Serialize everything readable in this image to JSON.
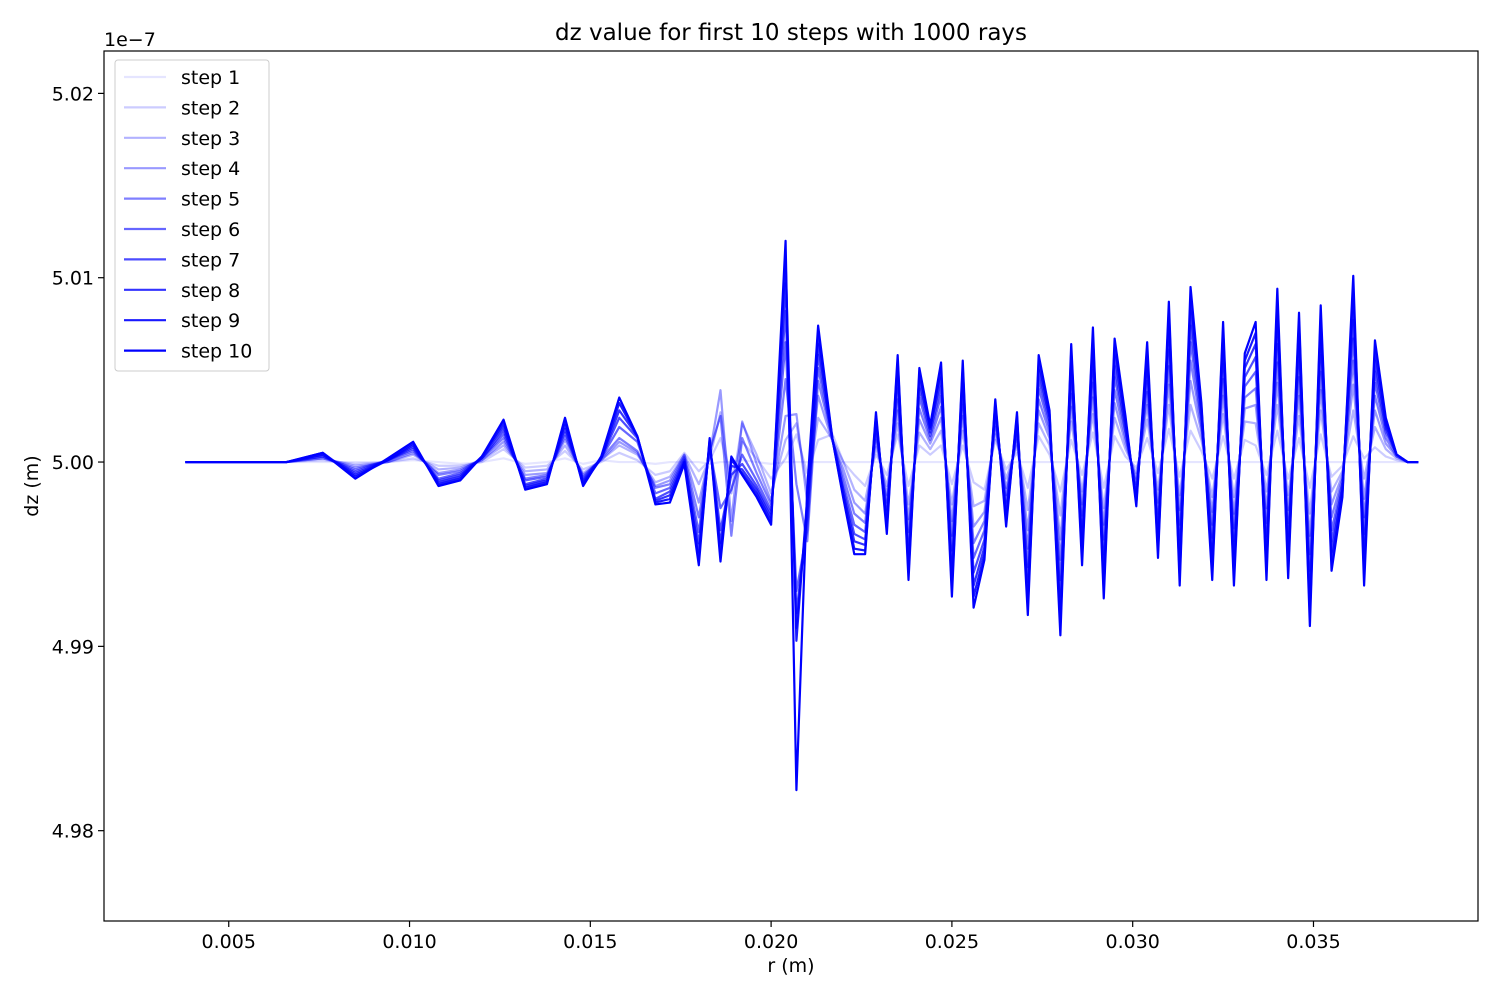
{
  "chart_data": {
    "type": "line",
    "title": "dz value for first 10 steps with 1000 rays",
    "xlabel": "r (m)",
    "ylabel": "dz (m)",
    "y_offset_label": "1e−7",
    "xlim": [
      0.00155,
      0.03955
    ],
    "ylim": [
      4.9751,
      5.0223
    ],
    "x_ticks": [
      0.005,
      0.01,
      0.015,
      0.02,
      0.025,
      0.03,
      0.035
    ],
    "x_tick_labels": [
      "0.005",
      "0.010",
      "0.015",
      "0.020",
      "0.025",
      "0.030",
      "0.035"
    ],
    "y_ticks": [
      4.98,
      4.99,
      5.0,
      5.01,
      5.02
    ],
    "y_tick_labels": [
      "4.98",
      "4.99",
      "5.00",
      "5.01",
      "5.02"
    ],
    "grid": false,
    "legend_position": "top-left",
    "base_color": "#0000ff",
    "series_alphas": [
      0.1,
      0.2,
      0.3,
      0.4,
      0.5,
      0.6,
      0.7,
      0.8,
      0.9,
      1.0
    ],
    "x": [
      0.0038,
      0.0047,
      0.0056,
      0.0066,
      0.0076,
      0.0085,
      0.0094,
      0.0101,
      0.0108,
      0.0114,
      0.012,
      0.0126,
      0.0132,
      0.0138,
      0.0143,
      0.0148,
      0.0153,
      0.0158,
      0.0163,
      0.0168,
      0.0172,
      0.0176,
      0.018,
      0.0183,
      0.0186,
      0.0189,
      0.0192,
      0.0196,
      0.02,
      0.0204,
      0.0207,
      0.021,
      0.0213,
      0.0217,
      0.022,
      0.0223,
      0.0226,
      0.0229,
      0.0232,
      0.0235,
      0.0238,
      0.0241,
      0.0244,
      0.0247,
      0.025,
      0.0253,
      0.0256,
      0.0259,
      0.0262,
      0.0265,
      0.0268,
      0.0271,
      0.0274,
      0.0277,
      0.028,
      0.0283,
      0.0286,
      0.0289,
      0.0292,
      0.0295,
      0.0298,
      0.0301,
      0.0304,
      0.0307,
      0.031,
      0.0313,
      0.0316,
      0.0319,
      0.0322,
      0.0325,
      0.0328,
      0.0331,
      0.0334,
      0.0337,
      0.034,
      0.0343,
      0.0346,
      0.0349,
      0.0352,
      0.0355,
      0.0358,
      0.0361,
      0.0364,
      0.0367,
      0.037,
      0.0373,
      0.0376,
      0.0379
    ],
    "series": [
      {
        "name": "step 1",
        "values": [
          5.0,
          5.0,
          5.0,
          5.0,
          5.0,
          5.0,
          5.0,
          5.0001,
          5.0,
          4.9999,
          5.0,
          5.0002,
          4.9999,
          5.0,
          5.0002,
          4.9999,
          5.0001,
          5.0,
          5.0,
          4.9999,
          5.0,
          5.0,
          5.0,
          4.9999,
          5.0,
          5.0,
          5.0001,
          5.0,
          4.9999,
          5.0,
          5.0,
          5.0,
          5.0,
          5.0,
          5.0,
          5.0,
          5.0,
          5.0,
          5.0,
          5.0,
          5.0,
          5.0,
          5.0,
          5.0,
          5.0,
          5.0,
          5.0,
          5.0,
          5.0,
          5.0,
          5.0,
          5.0,
          5.0,
          5.0,
          5.0,
          5.0,
          5.0,
          5.0,
          5.0,
          5.0,
          5.0,
          5.0,
          5.0,
          5.0,
          5.0,
          5.0,
          5.0,
          5.0,
          5.0,
          5.0,
          5.0,
          5.0,
          5.0,
          5.0,
          5.0,
          5.0,
          5.0,
          5.0,
          5.0,
          5.0,
          5.0,
          5.0,
          5.0,
          5.0,
          5.0,
          5.0,
          5.0,
          5.0
        ]
      },
      {
        "name": "step 2",
        "values": [
          5.0,
          5.0,
          5.0,
          5.0,
          5.0001,
          4.9999,
          5.0,
          5.0002,
          4.9998,
          4.9998,
          5.0,
          5.0007,
          4.9997,
          4.9998,
          5.0006,
          4.9996,
          5.0,
          5.0005,
          5.0001,
          4.9993,
          4.9995,
          5.0005,
          4.9995,
          5.0001,
          5.0013,
          4.9992,
          5.0011,
          5.0002,
          4.9991,
          5.0002,
          5.0015,
          4.9994,
          5.0012,
          5.0015,
          5.0,
          4.9993,
          4.9987,
          5.0004,
          4.9993,
          5.0015,
          4.9987,
          5.0009,
          5.0004,
          5.0009,
          4.9988,
          5.0009,
          4.9989,
          4.9985,
          5.0012,
          4.9996,
          5.0005,
          4.9986,
          5.0014,
          5.0004,
          4.9984,
          5.0012,
          4.9993,
          5.0016,
          4.9986,
          5.0014,
          5.0003,
          4.9997,
          5.0013,
          4.9994,
          5.0018,
          4.9992,
          5.0017,
          5.0006,
          4.9991,
          5.0014,
          4.9991,
          5.0012,
          5.0009,
          4.9993,
          5.0017,
          4.9991,
          5.0013,
          4.9986,
          5.0015,
          4.9992,
          4.9998,
          5.0014,
          5.0002,
          5.0008,
          5.0003,
          5.0001,
          5.0,
          5.0
        ]
      },
      {
        "name": "step 3",
        "values": [
          5.0,
          5.0,
          5.0,
          5.0,
          5.0002,
          4.9998,
          5.0,
          5.0004,
          4.9996,
          4.9997,
          5.0001,
          5.0009,
          4.9995,
          4.9996,
          5.0009,
          4.9994,
          5.0001,
          5.0009,
          5.0004,
          4.9989,
          4.9992,
          5.0004,
          4.9988,
          5.0002,
          5.0027,
          4.9983,
          5.0021,
          5.0004,
          4.9983,
          5.0012,
          5.0021,
          4.9986,
          5.0024,
          5.0012,
          5.0,
          4.9985,
          4.9979,
          5.0008,
          4.9987,
          5.0021,
          4.9977,
          5.0016,
          5.0007,
          5.0017,
          4.9977,
          5.0017,
          4.9976,
          4.9979,
          5.0015,
          4.9991,
          5.0009,
          4.9974,
          5.0021,
          5.0009,
          4.9971,
          5.0022,
          4.9984,
          5.0026,
          4.9975,
          5.0024,
          5.0007,
          4.9994,
          5.0023,
          4.9985,
          5.0031,
          4.9982,
          5.0031,
          5.0012,
          4.9981,
          5.0026,
          4.9981,
          5.0022,
          5.0021,
          4.9984,
          5.0031,
          4.9982,
          5.0025,
          4.9972,
          5.0028,
          4.9984,
          4.9995,
          5.0028,
          4.9991,
          5.0019,
          5.0007,
          5.0002,
          5.0,
          5.0
        ]
      },
      {
        "name": "step 4",
        "values": [
          5.0,
          5.0,
          5.0,
          5.0,
          5.0002,
          4.9997,
          5.0,
          5.0005,
          4.9994,
          4.9996,
          5.0001,
          5.0011,
          4.9993,
          4.9994,
          5.0012,
          4.9993,
          5.0001,
          5.0011,
          5.0005,
          4.9987,
          4.999,
          5.0004,
          4.9978,
          5.0004,
          5.0039,
          4.9968,
          5.0022,
          4.9999,
          4.9979,
          5.0025,
          5.0026,
          4.9978,
          5.0036,
          5.0011,
          4.9996,
          4.9978,
          4.9972,
          5.0012,
          4.9982,
          5.0028,
          4.9969,
          5.0023,
          5.001,
          5.0024,
          4.9968,
          5.0025,
          4.9965,
          4.9973,
          5.0019,
          4.9986,
          5.0012,
          4.9963,
          5.0028,
          5.0013,
          4.9958,
          5.003,
          4.9977,
          5.0035,
          4.9966,
          5.0032,
          5.001,
          4.9991,
          5.0031,
          4.9978,
          5.0042,
          4.9974,
          5.0044,
          5.0016,
          4.9973,
          5.0036,
          4.9972,
          5.0029,
          5.0031,
          4.9975,
          5.0043,
          4.9974,
          5.0036,
          4.996,
          5.0039,
          4.9977,
          4.9993,
          5.0042,
          4.998,
          5.0028,
          5.001,
          5.0003,
          5.0,
          5.0
        ]
      },
      {
        "name": "step 5",
        "values": [
          5.0,
          5.0,
          5.0,
          5.0,
          5.0003,
          4.9996,
          5.0001,
          5.0006,
          4.9993,
          4.9995,
          5.0002,
          5.0013,
          4.9991,
          4.9993,
          5.0014,
          4.9992,
          5.0002,
          5.0013,
          5.0006,
          4.9986,
          4.9988,
          5.0003,
          4.997,
          5.0006,
          5.0025,
          4.996,
          5.0013,
          4.9994,
          4.9977,
          5.0045,
          4.9988,
          4.9957,
          5.0044,
          5.0012,
          4.9992,
          4.9972,
          4.9967,
          5.0015,
          4.9978,
          5.0034,
          4.9962,
          5.0029,
          5.0012,
          5.003,
          4.996,
          5.0031,
          4.9956,
          4.9968,
          5.0022,
          4.9982,
          5.0015,
          4.9953,
          5.0034,
          5.0016,
          4.9947,
          5.0037,
          4.9971,
          5.0043,
          4.9958,
          5.0039,
          5.0013,
          4.9988,
          5.0038,
          4.9972,
          5.0052,
          4.9966,
          5.0055,
          5.0019,
          4.9966,
          5.0045,
          4.9964,
          5.0035,
          5.004,
          4.9967,
          5.0054,
          4.9967,
          5.0046,
          4.995,
          5.0049,
          4.997,
          4.9991,
          5.0055,
          4.997,
          5.0036,
          5.0013,
          5.0003,
          5.0,
          5.0
        ]
      },
      {
        "name": "step 6",
        "values": [
          5.0,
          5.0,
          5.0,
          5.0,
          5.0003,
          4.9995,
          5.0001,
          5.0007,
          4.9991,
          4.9994,
          5.0002,
          5.0015,
          4.999,
          4.9992,
          5.0016,
          4.9991,
          5.0002,
          5.0019,
          5.0011,
          4.9983,
          4.9986,
          5.0002,
          4.9962,
          5.0008,
          4.9975,
          4.9985,
          5.0004,
          4.999,
          4.9974,
          5.0065,
          4.993,
          4.9963,
          5.0051,
          5.0012,
          4.9988,
          4.9966,
          4.9962,
          5.0018,
          4.9974,
          5.004,
          4.9955,
          5.0035,
          5.0014,
          5.0036,
          4.9952,
          5.0037,
          4.9948,
          4.9963,
          5.0025,
          4.9978,
          5.0018,
          4.9943,
          5.004,
          5.0019,
          4.9936,
          5.0044,
          4.9965,
          5.005,
          4.995,
          5.0046,
          5.0016,
          4.9985,
          5.0044,
          4.9966,
          5.0061,
          4.9958,
          5.0065,
          5.0022,
          4.9959,
          5.0053,
          4.9957,
          5.0041,
          5.0049,
          4.996,
          5.0064,
          4.996,
          5.0055,
          4.9941,
          5.0058,
          4.9963,
          4.9989,
          5.0067,
          4.9961,
          5.0043,
          5.0016,
          5.0004,
          5.0,
          5.0
        ]
      },
      {
        "name": "step 7",
        "values": [
          5.0,
          5.0,
          5.0,
          5.0,
          5.0004,
          4.9994,
          5.0001,
          5.0008,
          4.999,
          4.9993,
          5.0002,
          5.0017,
          4.9988,
          4.9991,
          5.0018,
          4.999,
          5.0002,
          5.0024,
          5.0013,
          4.998,
          4.9984,
          5.0001,
          4.9956,
          5.001,
          4.9963,
          4.9993,
          4.9999,
          4.9987,
          4.9972,
          5.0082,
          4.9918,
          4.997,
          5.0058,
          5.0012,
          4.9985,
          4.9961,
          4.9958,
          5.0021,
          4.997,
          5.0046,
          4.9949,
          5.004,
          5.0016,
          5.0041,
          4.9945,
          5.0042,
          4.994,
          4.9958,
          5.0028,
          4.9974,
          5.002,
          4.9935,
          5.0045,
          5.0022,
          4.9927,
          5.005,
          4.9959,
          5.0057,
          4.9943,
          5.0052,
          5.0018,
          4.9982,
          5.005,
          4.9961,
          5.0069,
          4.9951,
          5.0074,
          5.0025,
          4.9952,
          5.006,
          4.995,
          5.0046,
          5.0057,
          4.9953,
          5.0073,
          4.9954,
          5.0063,
          4.9932,
          5.0066,
          4.9957,
          4.9987,
          5.0077,
          4.9953,
          5.0049,
          5.0018,
          5.0004,
          5.0,
          5.0
        ]
      },
      {
        "name": "step 8",
        "values": [
          5.0,
          5.0,
          5.0,
          5.0,
          5.0004,
          4.9993,
          5.0001,
          5.0009,
          4.9989,
          4.9992,
          5.0003,
          5.0019,
          4.9987,
          4.999,
          5.002,
          4.9989,
          5.0002,
          5.0028,
          5.0014,
          4.9979,
          4.9982,
          5.0,
          4.9951,
          5.0011,
          4.9956,
          4.9998,
          4.9996,
          4.9985,
          4.997,
          5.0097,
          4.991,
          4.9976,
          5.0064,
          5.0012,
          4.9983,
          4.9957,
          4.9955,
          5.0023,
          4.9967,
          5.0051,
          4.9944,
          5.0044,
          5.0018,
          5.0046,
          4.9938,
          5.0047,
          4.9933,
          4.9954,
          5.003,
          4.9971,
          5.0023,
          4.9928,
          5.005,
          5.0024,
          4.9919,
          5.0055,
          4.9954,
          5.0063,
          4.9937,
          5.0058,
          5.0021,
          4.998,
          5.0055,
          4.9956,
          5.0076,
          4.9944,
          5.0082,
          5.0028,
          4.9946,
          5.0066,
          4.9944,
          5.0051,
          5.0064,
          4.9947,
          5.0081,
          4.9948,
          5.007,
          4.9924,
          5.0073,
          4.9951,
          4.9985,
          5.0086,
          4.9946,
          5.0055,
          5.002,
          5.0004,
          5.0,
          5.0
        ]
      },
      {
        "name": "step 9",
        "values": [
          5.0,
          5.0,
          5.0,
          5.0,
          5.0005,
          4.9992,
          5.0001,
          5.001,
          4.9988,
          4.9991,
          5.0003,
          5.0021,
          4.9986,
          4.9989,
          5.0022,
          4.9988,
          5.0002,
          5.0032,
          5.0014,
          4.9978,
          4.998,
          5.0,
          4.9947,
          5.0012,
          4.9951,
          5.0001,
          4.9994,
          4.9983,
          4.9968,
          5.011,
          4.9903,
          4.9981,
          5.0069,
          5.0012,
          4.9981,
          4.9953,
          4.9952,
          5.0025,
          4.9964,
          5.0055,
          4.994,
          5.0048,
          5.0019,
          5.005,
          4.9932,
          5.0051,
          4.9927,
          4.995,
          5.0032,
          4.9968,
          5.0025,
          4.9922,
          5.0054,
          5.0026,
          4.9912,
          5.006,
          4.9949,
          5.0068,
          4.9931,
          5.0063,
          5.0023,
          4.9978,
          5.006,
          4.9952,
          5.0082,
          4.9938,
          5.0089,
          5.003,
          4.9941,
          5.0071,
          4.9938,
          5.0055,
          5.007,
          4.9941,
          5.0088,
          4.9942,
          5.0076,
          4.9917,
          5.0079,
          4.9946,
          4.9983,
          5.0094,
          4.9939,
          5.0061,
          5.0022,
          5.0004,
          5.0,
          5.0
        ]
      },
      {
        "name": "step 10",
        "values": [
          5.0,
          5.0,
          5.0,
          5.0,
          5.0005,
          4.9991,
          5.0002,
          5.0011,
          4.9987,
          4.999,
          5.0003,
          5.0023,
          4.9985,
          4.9988,
          5.0024,
          4.9987,
          5.0003,
          5.0035,
          5.0014,
          4.9977,
          4.9978,
          4.9999,
          4.9944,
          5.0013,
          4.9946,
          5.0003,
          4.9993,
          4.9981,
          4.9966,
          5.012,
          4.9822,
          4.9986,
          5.0074,
          5.0012,
          4.998,
          4.995,
          4.995,
          5.0027,
          4.9961,
          5.0058,
          4.9936,
          5.0051,
          5.002,
          5.0054,
          4.9927,
          5.0055,
          4.9921,
          4.9947,
          5.0034,
          4.9965,
          5.0027,
          4.9917,
          5.0058,
          5.0028,
          4.9906,
          5.0064,
          4.9944,
          5.0073,
          4.9926,
          5.0067,
          5.0025,
          4.9976,
          5.0065,
          4.9948,
          5.0087,
          4.9933,
          5.0095,
          5.0032,
          4.9936,
          5.0076,
          4.9933,
          5.0059,
          5.0076,
          4.9936,
          5.0094,
          4.9937,
          5.0081,
          4.9911,
          5.0085,
          4.9941,
          4.9981,
          5.0101,
          4.9933,
          5.0066,
          5.0024,
          5.0004,
          5.0,
          5.0
        ]
      }
    ]
  }
}
